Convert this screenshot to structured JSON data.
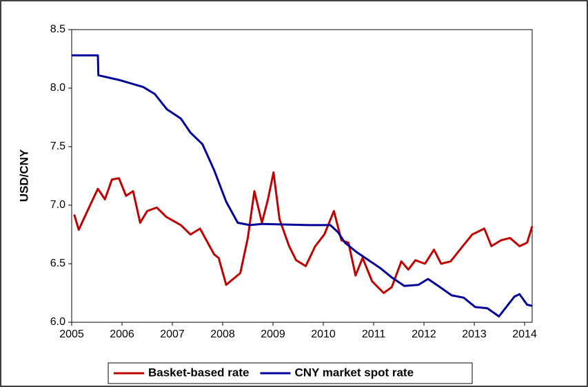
{
  "chart_data": {
    "type": "line",
    "y_label": "USD/CNY",
    "xlim": [
      2005,
      2014.15
    ],
    "xticks": [
      2005,
      2006,
      2007,
      2008,
      2009,
      2010,
      2011,
      2012,
      2013,
      2014
    ],
    "ylim": [
      6.0,
      8.5
    ],
    "yticks": [
      {
        "value": 6.0,
        "label": "6.0"
      },
      6.5,
      {
        "value": 7.0,
        "label": "7.0"
      },
      7.5,
      {
        "value": 8.0,
        "label": "8.0"
      },
      8.5
    ],
    "legend": "bottom",
    "series": [
      {
        "name": "Basket-based rate",
        "color": "#c00000",
        "x": [
          2005.05,
          2005.14,
          2005.28,
          2005.42,
          2005.52,
          2005.66,
          2005.8,
          2005.94,
          2006.08,
          2006.22,
          2006.36,
          2006.5,
          2006.69,
          2006.88,
          2007.17,
          2007.36,
          2007.55,
          2007.83,
          2007.92,
          2008.07,
          2008.21,
          2008.35,
          2008.5,
          2008.63,
          2008.78,
          2008.9,
          2009.01,
          2009.13,
          2009.32,
          2009.46,
          2009.65,
          2009.84,
          2010.02,
          2010.21,
          2010.36,
          2010.5,
          2010.64,
          2010.78,
          2010.97,
          2011.2,
          2011.36,
          2011.55,
          2011.69,
          2011.83,
          2012.02,
          2012.2,
          2012.34,
          2012.53,
          2012.77,
          2012.96,
          2013.2,
          2013.34,
          2013.53,
          2013.71,
          2013.9,
          2014.05,
          2014.15
        ],
        "values": [
          6.92,
          6.79,
          6.92,
          7.05,
          7.14,
          7.05,
          7.22,
          7.23,
          7.08,
          7.12,
          6.85,
          6.95,
          6.98,
          6.9,
          6.83,
          6.75,
          6.8,
          6.58,
          6.55,
          6.32,
          6.37,
          6.42,
          6.72,
          7.12,
          6.85,
          7.05,
          7.28,
          6.88,
          6.65,
          6.53,
          6.48,
          6.65,
          6.75,
          6.95,
          6.7,
          6.68,
          6.4,
          6.55,
          6.35,
          6.25,
          6.3,
          6.52,
          6.45,
          6.53,
          6.5,
          6.62,
          6.5,
          6.52,
          6.65,
          6.75,
          6.8,
          6.65,
          6.7,
          6.72,
          6.65,
          6.68,
          6.82
        ]
      },
      {
        "name": "CNY market spot rate",
        "color": "#000099",
        "x": [
          2005.0,
          2005.52,
          2005.53,
          2005.94,
          2006.42,
          2006.65,
          2006.89,
          2007.17,
          2007.36,
          2007.6,
          2007.83,
          2008.07,
          2008.3,
          2008.54,
          2008.78,
          2009.72,
          2010.14,
          2010.29,
          2010.43,
          2010.66,
          2011.14,
          2011.37,
          2011.61,
          2011.89,
          2012.08,
          2012.32,
          2012.55,
          2012.79,
          2013.02,
          2013.26,
          2013.49,
          2013.8,
          2013.9,
          2014.05,
          2014.15
        ],
        "values": [
          8.28,
          8.28,
          8.11,
          8.07,
          8.01,
          7.95,
          7.82,
          7.74,
          7.62,
          7.52,
          7.3,
          7.03,
          6.85,
          6.83,
          6.84,
          6.83,
          6.83,
          6.77,
          6.68,
          6.6,
          6.46,
          6.38,
          6.31,
          6.32,
          6.37,
          6.3,
          6.23,
          6.21,
          6.13,
          6.12,
          6.05,
          6.22,
          6.24,
          6.15,
          6.14
        ]
      }
    ]
  }
}
